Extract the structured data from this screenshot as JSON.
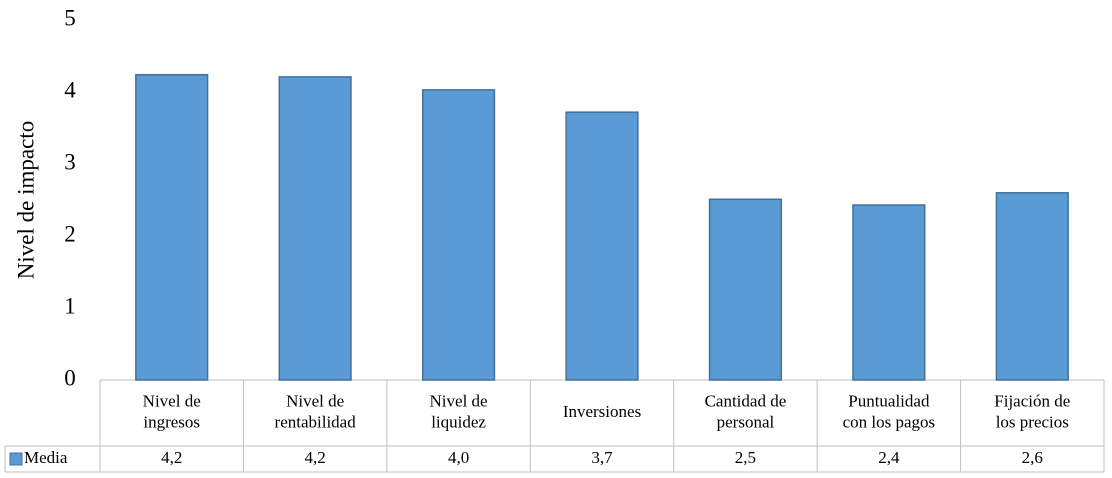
{
  "chart_data": {
    "type": "bar",
    "y_axis_label": "Nivel de impacto",
    "categories": [
      "Nivel de\ningresos",
      "Nivel de\nrentabilidad",
      "Nivel de\nliquidez",
      "Inversiones",
      "Cantidad de\npersonal",
      "Puntualidad\ncon los pagos",
      "Fijación de\nlos precios"
    ],
    "series": [
      {
        "name": "Media",
        "color": "#5b9bd5",
        "values": [
          4.24,
          4.21,
          4.03,
          3.72,
          2.51,
          2.43,
          2.6
        ],
        "value_labels": [
          "4,2",
          "4,2",
          "4,0",
          "3,7",
          "2,5",
          "2,4",
          "2,6"
        ]
      }
    ],
    "ylim": [
      0,
      5
    ],
    "yticks": [
      0,
      1,
      2,
      3,
      4,
      5
    ],
    "grid": false,
    "legend": "data-table"
  }
}
